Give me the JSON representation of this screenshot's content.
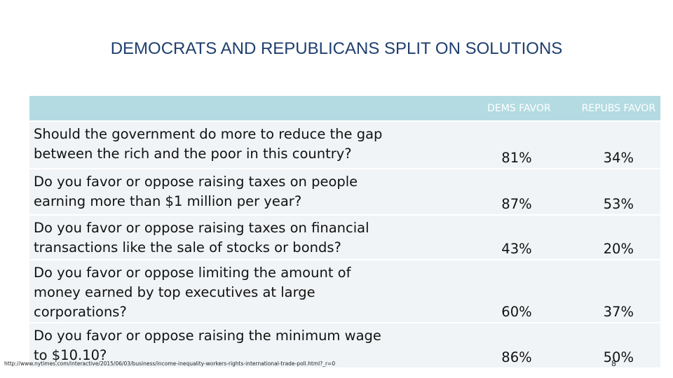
{
  "slide": {
    "title": "DEMOCRATS AND REPUBLICANS SPLIT ON SOLUTIONS",
    "page_number": "8",
    "source_url": "http://www.nytimes.com/interactive/2015/06/03/business/income-inequality-workers-rights-international-trade-poll.html?_r=0"
  },
  "table": {
    "headers": {
      "question": "",
      "dems": "DEMS FAVOR",
      "reps": "REPUBS FAVOR"
    },
    "rows": [
      {
        "question": "Should the government do more to reduce the gap between the rich and the poor in this country?",
        "dems": "81%",
        "reps": "34%"
      },
      {
        "question": "Do you favor or oppose raising taxes on people earning more than $1 million per year?",
        "dems": "87%",
        "reps": "53%"
      },
      {
        "question": "Do you favor or oppose raising taxes on financial transactions like the sale of stocks or bonds?",
        "dems": "43%",
        "reps": "20%"
      },
      {
        "question": "Do you favor or oppose limiting the amount of money earned by top executives at large corporations?",
        "dems": "60%",
        "reps": "37%"
      },
      {
        "question": "Do you favor or oppose raising the minimum wage to $10.10?",
        "dems": "86%",
        "reps": "50%"
      }
    ]
  },
  "colors": {
    "title": "#1f3f6e",
    "header_bg": "#b4dbe2",
    "row_bg": "#f1f4f6"
  }
}
